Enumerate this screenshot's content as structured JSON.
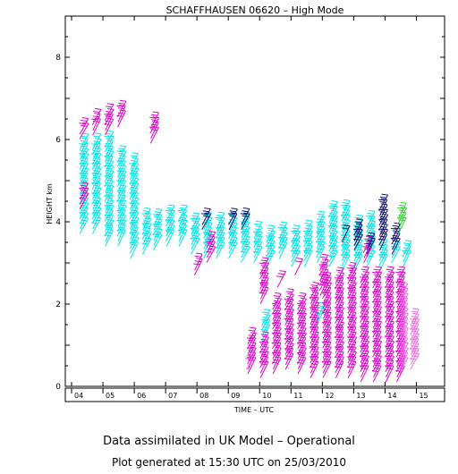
{
  "chart_data": {
    "type": "scatter",
    "title": "SCHAFFHAUSEN 06620 – High Mode",
    "xlabel": "TIME – UTC",
    "ylabel": "HEIGHT km",
    "xlim": [
      3.8,
      15.9
    ],
    "ylim": [
      0,
      9.0
    ],
    "x_ticks": [
      "04",
      "05",
      "06",
      "07",
      "08",
      "09",
      "10",
      "11",
      "12",
      "13",
      "14",
      "15"
    ],
    "y_ticks": [
      "0",
      "2",
      "4",
      "6",
      "8"
    ],
    "grid": false,
    "colors": {
      "cyan": "#00e5e5",
      "magenta": "#e000c8",
      "pink": "#f070e0",
      "navy": "#101070",
      "green": "#30d030"
    },
    "series": [
      {
        "color": "cyan",
        "columns": [
          [
            4.4,
            3.9,
            6.0
          ],
          [
            4.8,
            3.9,
            6.0
          ],
          [
            5.2,
            3.6,
            6.0
          ],
          [
            5.6,
            3.6,
            5.7
          ],
          [
            6.0,
            3.3,
            5.5
          ],
          [
            6.4,
            3.4,
            4.2
          ],
          [
            6.75,
            3.5,
            4.2
          ],
          [
            7.15,
            3.6,
            4.2
          ],
          [
            7.55,
            3.6,
            4.2
          ],
          [
            7.95,
            3.4,
            4.1
          ],
          [
            8.35,
            3.3,
            4.1
          ],
          [
            8.75,
            3.3,
            4.1
          ],
          [
            9.15,
            3.3,
            4.1
          ],
          [
            9.55,
            3.2,
            4.1
          ],
          [
            9.95,
            3.2,
            3.8
          ],
          [
            10.35,
            3.1,
            3.8
          ],
          [
            10.75,
            3.3,
            3.8
          ],
          [
            11.15,
            3.1,
            3.8
          ],
          [
            11.55,
            3.1,
            3.9
          ],
          [
            11.95,
            3.2,
            4.1
          ],
          [
            12.35,
            3.1,
            4.3
          ],
          [
            12.75,
            3.0,
            4.4
          ],
          [
            13.15,
            3.0,
            4.0
          ],
          [
            13.55,
            3.1,
            4.1
          ],
          [
            13.95,
            3.0,
            3.4
          ],
          [
            14.35,
            3.2,
            3.4
          ],
          [
            14.7,
            3.1,
            3.4
          ],
          [
            10.2,
            1.3,
            1.7
          ],
          [
            11.95,
            1.7,
            1.9
          ]
        ]
      },
      {
        "color": "magenta",
        "columns": [
          [
            4.4,
            4.5,
            4.8
          ],
          [
            4.4,
            6.2,
            6.4
          ],
          [
            4.8,
            6.3,
            6.6
          ],
          [
            5.2,
            6.3,
            6.7
          ],
          [
            5.6,
            6.5,
            6.8
          ],
          [
            6.65,
            6.1,
            6.5
          ],
          [
            9.75,
            0.5,
            1.3
          ],
          [
            10.15,
            2.2,
            3.0
          ],
          [
            10.15,
            0.4,
            1.2
          ],
          [
            10.55,
            0.5,
            2.1
          ],
          [
            10.95,
            0.6,
            2.2
          ],
          [
            11.35,
            0.5,
            2.1
          ],
          [
            11.75,
            0.4,
            2.4
          ],
          [
            12.15,
            0.4,
            2.6
          ],
          [
            12.55,
            0.4,
            2.7
          ],
          [
            12.95,
            0.4,
            2.8
          ],
          [
            13.35,
            0.3,
            2.8
          ],
          [
            13.75,
            0.3,
            2.8
          ],
          [
            14.15,
            0.3,
            2.7
          ],
          [
            14.5,
            0.3,
            2.8
          ],
          [
            11.25,
            2.9,
            3.0
          ],
          [
            12.05,
            2.4,
            3.0
          ],
          [
            8.05,
            2.9,
            3.1
          ],
          [
            8.45,
            3.2,
            3.6
          ],
          [
            10.7,
            2.6,
            2.7
          ],
          [
            13.45,
            3.2,
            3.5
          ]
        ]
      },
      {
        "color": "pink",
        "columns": [
          [
            14.6,
            0.5,
            2.4
          ],
          [
            14.95,
            0.6,
            1.7
          ],
          [
            9.7,
            0.6,
            0.7
          ]
        ]
      },
      {
        "color": "navy",
        "columns": [
          [
            8.3,
            4.0,
            4.2
          ],
          [
            9.15,
            4.0,
            4.2
          ],
          [
            9.55,
            4.0,
            4.2
          ],
          [
            12.75,
            3.7,
            3.8
          ],
          [
            13.15,
            3.5,
            3.9
          ],
          [
            13.55,
            3.4,
            3.6
          ],
          [
            13.95,
            3.5,
            4.5
          ],
          [
            14.35,
            3.4,
            3.8
          ]
        ]
      },
      {
        "color": "green",
        "columns": [
          [
            14.55,
            3.9,
            4.3
          ]
        ]
      }
    ]
  },
  "footer": {
    "line1": "Data assimilated in UK Model – Operational",
    "line2": "Plot generated at 15:30 UTC on 25/03/2010"
  }
}
